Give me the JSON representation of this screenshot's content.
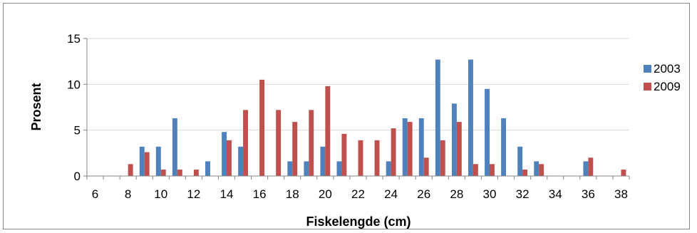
{
  "chart_data": {
    "type": "bar",
    "xlabel": "Fiskelengde (cm)",
    "ylabel": "Prosent",
    "ylim": [
      0,
      15
    ],
    "yticks": [
      0,
      5,
      10,
      15
    ],
    "x": [
      6,
      7,
      8,
      9,
      10,
      11,
      12,
      13,
      14,
      15,
      16,
      17,
      18,
      19,
      20,
      21,
      22,
      23,
      24,
      25,
      26,
      27,
      28,
      29,
      30,
      31,
      32,
      33,
      34,
      35,
      36,
      37,
      38
    ],
    "xtick_labels": [
      "6",
      "8",
      "10",
      "12",
      "14",
      "16",
      "18",
      "20",
      "22",
      "24",
      "26",
      "28",
      "30",
      "32",
      "34",
      "36",
      "38"
    ],
    "series": [
      {
        "name": "2003",
        "color": "#4F81BD",
        "values": [
          0,
          0,
          0,
          3.2,
          3.2,
          6.3,
          0,
          1.6,
          4.8,
          3.2,
          0,
          0,
          1.6,
          1.6,
          3.2,
          1.6,
          0,
          0,
          1.6,
          6.3,
          6.3,
          12.7,
          7.9,
          12.7,
          9.5,
          6.3,
          3.2,
          1.6,
          0,
          0,
          1.6,
          0,
          0
        ]
      },
      {
        "name": "2009",
        "color": "#C0504D",
        "values": [
          0,
          0,
          1.3,
          2.6,
          0.7,
          0.7,
          0.7,
          0,
          3.9,
          7.2,
          10.5,
          7.2,
          5.9,
          7.2,
          9.8,
          4.6,
          3.9,
          3.9,
          5.2,
          5.9,
          2.0,
          3.9,
          5.9,
          1.3,
          1.3,
          0,
          0.7,
          1.3,
          0,
          0,
          2.0,
          0,
          0.7
        ]
      }
    ],
    "grid": true,
    "legend": "right"
  }
}
